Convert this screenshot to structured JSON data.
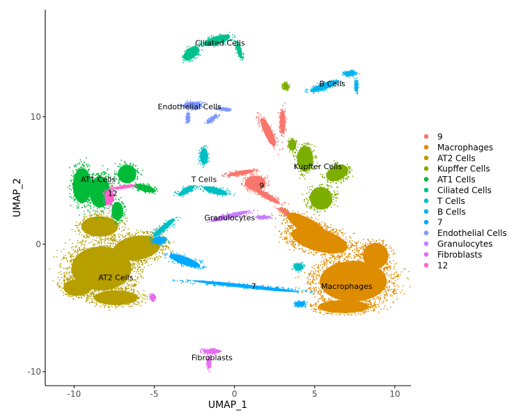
{
  "chart_data": {
    "type": "scatter",
    "xlabel": "UMAP_1",
    "ylabel": "UMAP_2",
    "xlim": [
      -11.8,
      11.0
    ],
    "ylim": [
      -11.1,
      18.4
    ],
    "x_ticks": [
      -10,
      -5,
      0,
      5,
      10
    ],
    "y_ticks": [
      -10,
      0,
      10
    ],
    "x_tick_labels": [
      "-10",
      "-5",
      "0",
      "5",
      "10"
    ],
    "y_tick_labels": [
      "-10",
      "0",
      "10"
    ],
    "grid": false,
    "legend_position": "right",
    "series": [
      {
        "name": "9",
        "color": "#F8766D",
        "label_pos": [
          1.7,
          4.6
        ],
        "blobs": [
          [
            1.3,
            4.8,
            0.9,
            0.8,
            0
          ],
          [
            2.0,
            3.8,
            1.3,
            0.3,
            -30
          ],
          [
            0.4,
            5.6,
            1.2,
            0.25,
            10
          ],
          [
            2.1,
            8.8,
            0.35,
            1.7,
            25
          ],
          [
            3.0,
            9.6,
            0.25,
            1.3,
            0
          ],
          [
            3.2,
            2.5,
            0.7,
            0.25,
            -35
          ]
        ]
      },
      {
        "name": "Macrophages",
        "color": "#DE8C00",
        "label_pos": [
          7.0,
          -3.3
        ],
        "blobs": [
          [
            7.4,
            -2.9,
            2.9,
            2.2,
            0
          ],
          [
            5.3,
            0.3,
            2.5,
            1.2,
            -15
          ],
          [
            6.8,
            -4.9,
            2.2,
            0.7,
            0
          ],
          [
            4.6,
            1.4,
            2.1,
            0.8,
            -30
          ],
          [
            8.8,
            -0.9,
            1.1,
            1.4,
            0
          ]
        ]
      },
      {
        "name": "AT2 Cells",
        "color": "#B79F00",
        "label_pos": [
          -7.4,
          -2.6
        ],
        "blobs": [
          [
            -8.3,
            -1.9,
            2.6,
            2.4,
            0
          ],
          [
            -6.1,
            -0.3,
            2.1,
            1.3,
            10
          ],
          [
            -8.4,
            1.4,
            1.6,
            1.1,
            0
          ],
          [
            -9.8,
            -3.4,
            1.2,
            0.9,
            0
          ],
          [
            -7.4,
            -4.2,
            1.9,
            0.8,
            0
          ]
        ]
      },
      {
        "name": "Kupffer Cells",
        "color": "#7CAE00",
        "label_pos": [
          5.2,
          6.1
        ],
        "blobs": [
          [
            4.4,
            6.7,
            0.7,
            1.4,
            0
          ],
          [
            6.4,
            5.6,
            1.0,
            0.8,
            25
          ],
          [
            5.4,
            3.6,
            1.0,
            1.2,
            -40
          ],
          [
            3.6,
            7.8,
            0.35,
            0.6,
            0
          ],
          [
            3.2,
            12.4,
            0.25,
            0.35,
            0
          ]
        ]
      },
      {
        "name": "AT1 Cells",
        "color": "#00BA38",
        "label_pos": [
          -8.5,
          5.1
        ],
        "blobs": [
          [
            -9.5,
            4.6,
            0.8,
            1.9,
            0
          ],
          [
            -8.4,
            4.1,
            0.9,
            1.7,
            0
          ],
          [
            -6.7,
            5.5,
            0.8,
            1.0,
            0
          ],
          [
            -5.6,
            4.4,
            1.0,
            0.35,
            -15
          ],
          [
            -7.3,
            2.6,
            0.5,
            1.0,
            0
          ]
        ]
      },
      {
        "name": "Ciliated Cells",
        "color": "#00C08B",
        "label_pos": [
          -0.9,
          15.8
        ],
        "blobs": [
          [
            -1.1,
            16.0,
            1.2,
            0.45,
            18
          ],
          [
            -2.7,
            15.0,
            0.8,
            0.55,
            40
          ],
          [
            0.3,
            15.2,
            0.2,
            0.8,
            15
          ]
        ]
      },
      {
        "name": "T Cells",
        "color": "#00BFC4",
        "label_pos": [
          -1.9,
          5.1
        ],
        "blobs": [
          [
            -1.9,
            6.9,
            0.35,
            0.9,
            0
          ],
          [
            -3.0,
            4.2,
            0.8,
            0.3,
            30
          ],
          [
            -4.4,
            1.3,
            1.2,
            0.3,
            40
          ],
          [
            -1.2,
            4.2,
            1.1,
            0.35,
            -15
          ],
          [
            4.0,
            -1.8,
            0.4,
            0.4,
            0
          ]
        ]
      },
      {
        "name": "B Cells",
        "color": "#00B4F0",
        "label_pos": [
          6.1,
          12.6
        ],
        "blobs": [
          [
            5.6,
            12.4,
            1.3,
            0.35,
            20
          ],
          [
            7.2,
            13.4,
            0.5,
            0.3,
            0
          ],
          [
            7.6,
            12.4,
            0.15,
            0.55,
            0
          ]
        ]
      },
      {
        "name": "7",
        "color": "#00A9FF",
        "label_pos": [
          1.2,
          -3.3
        ],
        "blobs": [
          [
            0.7,
            -3.3,
            4.6,
            0.2,
            -6
          ],
          [
            -3.1,
            -1.3,
            1.4,
            0.45,
            -20
          ],
          [
            -4.7,
            0.3,
            0.6,
            0.4,
            0
          ],
          [
            4.1,
            -4.7,
            0.4,
            0.3,
            0
          ]
        ]
      },
      {
        "name": "Endothelial Cells",
        "color": "#7F96FF",
        "label_pos": [
          -2.8,
          10.8
        ],
        "blobs": [
          [
            -2.6,
            10.9,
            0.8,
            0.4,
            0
          ],
          [
            -0.7,
            10.6,
            0.6,
            0.15,
            -8
          ],
          [
            -1.4,
            9.8,
            0.6,
            0.2,
            40
          ],
          [
            -2.9,
            9.9,
            0.15,
            0.45,
            0
          ]
        ]
      },
      {
        "name": "Granulocytes",
        "color": "#C77CFF",
        "label_pos": [
          -0.3,
          2.1
        ],
        "blobs": [
          [
            -0.3,
            2.2,
            1.7,
            0.25,
            15
          ],
          [
            1.8,
            2.1,
            0.5,
            0.18,
            0
          ]
        ]
      },
      {
        "name": "Fibroblasts",
        "color": "#E76BF3",
        "label_pos": [
          -1.4,
          -8.9
        ],
        "blobs": [
          [
            -1.4,
            -8.4,
            0.8,
            0.25,
            0
          ],
          [
            -1.6,
            -9.3,
            0.15,
            0.6,
            0
          ],
          [
            -5.1,
            -4.2,
            0.2,
            0.3,
            0
          ]
        ]
      },
      {
        "name": "12",
        "color": "#FF61CC",
        "label_pos": [
          -7.6,
          4.0
        ],
        "blobs": [
          [
            -7.8,
            3.7,
            0.4,
            0.8,
            0
          ],
          [
            -6.9,
            4.5,
            0.8,
            0.15,
            10
          ]
        ]
      }
    ]
  }
}
